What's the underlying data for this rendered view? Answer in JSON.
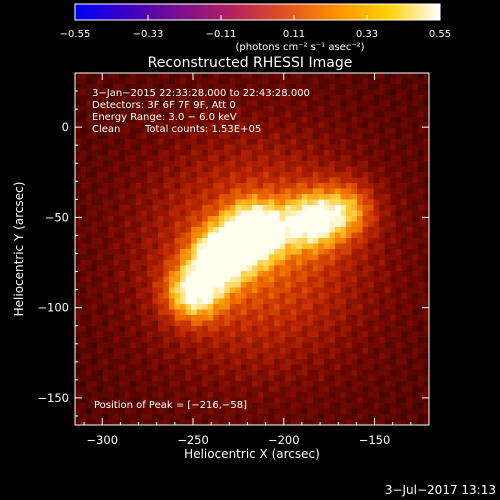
{
  "chart_data": {
    "type": "heatmap",
    "title": "Reconstructed RHESSI Image",
    "xlabel": "Heliocentric X (arcsec)",
    "ylabel": "Heliocentric Y (arcsec)",
    "xlim": [
      -315,
      -120
    ],
    "ylim": [
      -165,
      30
    ],
    "xticks": [
      -300,
      -250,
      -200,
      -150
    ],
    "xtick_labels": [
      "−300",
      "−250",
      "−200",
      "−150"
    ],
    "yticks": [
      0,
      -50,
      -100,
      -150
    ],
    "ytick_labels": [
      "0",
      "−50",
      "−100",
      "−150"
    ],
    "colorbar": {
      "range": [
        -0.55,
        0.55
      ],
      "ticks": [
        -0.55,
        -0.33,
        -0.11,
        0.11,
        0.33,
        0.55
      ],
      "tick_labels": [
        "−0.55",
        "−0.33",
        "−0.11",
        "0.11",
        "0.33",
        "0.55"
      ],
      "unit_label": "(photons cm⁻² s⁻¹ asec⁻²)",
      "colormap": [
        "#0000ff",
        "#3a00c0",
        "#7a1090",
        "#b32060",
        "#e05020",
        "#ff9000",
        "#ffd000",
        "#ffffff"
      ]
    },
    "annotations": {
      "time_range": "3−Jan−2015 22:33:28.000 to 22:43:28.000",
      "detectors": "Detectors: 3F 6F 7F 9F, Att 0",
      "energy": "Energy Range: 3.0 − 6.0 keV",
      "clean": "Clean",
      "counts": "Total counts: 1.53E+05",
      "peak": "Position of Peak = [−216,−58]"
    },
    "peak": [
      -216,
      -58
    ],
    "sources": [
      {
        "x": -216,
        "y": -58,
        "intensity": 0.55
      },
      {
        "x": -235,
        "y": -72,
        "intensity": 0.5
      },
      {
        "x": -250,
        "y": -92,
        "intensity": 0.42
      },
      {
        "x": -185,
        "y": -52,
        "intensity": 0.4
      },
      {
        "x": -165,
        "y": -46,
        "intensity": 0.3
      }
    ],
    "background_level": 0.1,
    "footer": "3−Jul−2017 13:13"
  }
}
